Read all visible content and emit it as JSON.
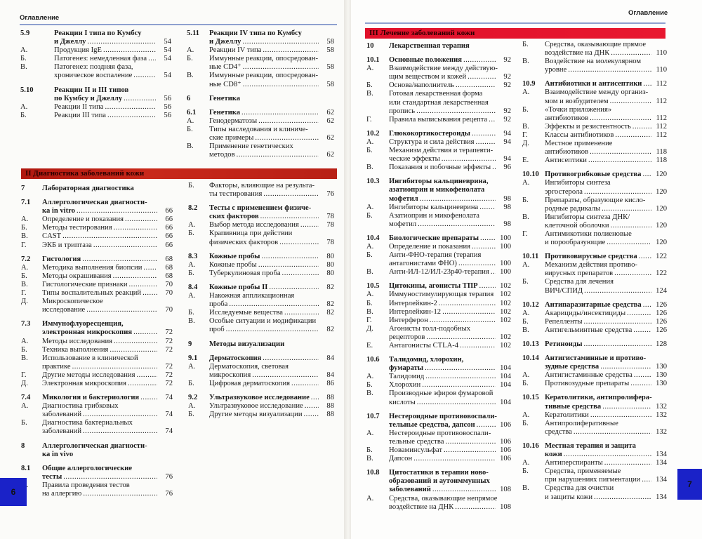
{
  "left_page": {
    "running_head": "Оглавление",
    "page_number": "6",
    "section_bar": "II   Диагностика заболеваний кожи",
    "top_col1": [
      {
        "n": "5.9",
        "b": true,
        "t": [
          "Реакции I типа по Кумбсу",
          "и Джеллу"
        ],
        "p": "54"
      },
      {
        "n": "А.",
        "t": [
          "Продукция IgE"
        ],
        "p": "54"
      },
      {
        "n": "Б.",
        "t": [
          "Патогенез: немедленная фаза"
        ],
        "p": "54"
      },
      {
        "n": "В.",
        "t": [
          "Патогенез: поздняя фаза,",
          "хроническое воспаление"
        ],
        "p": "54"
      },
      {
        "n": "5.10",
        "b": true,
        "g": true,
        "t": [
          "Реакции II и III типов",
          "по Кумбсу и Джеллу"
        ],
        "p": "56"
      },
      {
        "n": "А.",
        "t": [
          "Реакции II типа"
        ],
        "p": "56"
      },
      {
        "n": "Б.",
        "t": [
          "Реакции III типа"
        ],
        "p": "56"
      }
    ],
    "top_col2": [
      {
        "n": "5.11",
        "b": true,
        "t": [
          "Реакции IV типа по Кумбсу",
          "и Джеллу"
        ],
        "p": "58"
      },
      {
        "n": "А.",
        "t": [
          "Реакции IV типа"
        ],
        "p": "58"
      },
      {
        "n": "Б.",
        "t": [
          "Иммунные реакции, опосредован-",
          "ные CD4⁺"
        ],
        "p": "58"
      },
      {
        "n": "В.",
        "t": [
          "Иммунные реакции, опосредован-",
          "ные CD8⁺"
        ],
        "p": "58"
      },
      {
        "n": "6",
        "b": true,
        "g": true,
        "t": [
          "Генетика"
        ],
        "p": ""
      },
      {
        "n": "6.1",
        "b": true,
        "g": true,
        "t": [
          "Генетика"
        ],
        "p": "62"
      },
      {
        "n": "А.",
        "t": [
          "Генодерматозы"
        ],
        "p": "62"
      },
      {
        "n": "Б.",
        "t": [
          "Типы наследования и клиниче-",
          "ские примеры"
        ],
        "p": "62"
      },
      {
        "n": "В.",
        "t": [
          "Применение генетических",
          "методов"
        ],
        "p": "62"
      }
    ],
    "col1": [
      {
        "n": "7",
        "b": true,
        "t": [
          "Лабораторная диагностика"
        ],
        "p": ""
      },
      {
        "n": "7.1",
        "b": true,
        "g": true,
        "t": [
          "Аллергологическая диагности-",
          "ка in vitro"
        ],
        "p": "66"
      },
      {
        "n": "А.",
        "t": [
          "Определение и показания"
        ],
        "p": "66"
      },
      {
        "n": "Б.",
        "t": [
          "Методы тестирования"
        ],
        "p": "66"
      },
      {
        "n": "В.",
        "t": [
          "CAST"
        ],
        "p": "66"
      },
      {
        "n": "Г.",
        "t": [
          "ЭКБ и триптаза"
        ],
        "p": "66"
      },
      {
        "n": "7.2",
        "b": true,
        "g": true,
        "t": [
          "Гистология"
        ],
        "p": "68"
      },
      {
        "n": "А.",
        "t": [
          "Методика выполнения биопсии"
        ],
        "p": "68"
      },
      {
        "n": "Б.",
        "t": [
          "Методы окрашивания"
        ],
        "p": "68"
      },
      {
        "n": "В.",
        "t": [
          "Гистологические признаки"
        ],
        "p": "70"
      },
      {
        "n": "Г.",
        "t": [
          "Типы воспалительных реакций"
        ],
        "p": "70"
      },
      {
        "n": "Д.",
        "t": [
          "Микроскопическое",
          "исследование"
        ],
        "p": "70"
      },
      {
        "n": "7.3",
        "b": true,
        "g": true,
        "t": [
          "Иммунофлуоресценция,",
          "электронная микроскопия"
        ],
        "p": "72"
      },
      {
        "n": "А.",
        "t": [
          "Методы исследования"
        ],
        "p": "72"
      },
      {
        "n": "Б.",
        "t": [
          "Техника выполнения"
        ],
        "p": "72"
      },
      {
        "n": "В.",
        "t": [
          "Использование в клинической",
          "практике"
        ],
        "p": "72"
      },
      {
        "n": "Г.",
        "t": [
          "Другие методы исследования"
        ],
        "p": "72"
      },
      {
        "n": "Д.",
        "t": [
          "Электронная микроскопия"
        ],
        "p": "72"
      },
      {
        "n": "7.4",
        "b": true,
        "g": true,
        "t": [
          "Микология и бактериология"
        ],
        "p": "74"
      },
      {
        "n": "А.",
        "t": [
          "Диагностика грибковых",
          "заболеваний"
        ],
        "p": "74"
      },
      {
        "n": "Б.",
        "t": [
          "Диагностика бактериальных",
          "заболеваний"
        ],
        "p": "74"
      },
      {
        "n": "8",
        "b": true,
        "g": true,
        "t": [
          "Аллергологическая диагности-",
          "ка in vivo"
        ],
        "p": ""
      },
      {
        "n": "8.1",
        "b": true,
        "g": true,
        "t": [
          "Общие аллергологические",
          "тесты"
        ],
        "p": "76"
      },
      {
        "n": "А.",
        "t": [
          "Правила проведения тестов",
          "на аллергию"
        ],
        "p": "76"
      }
    ],
    "col2": [
      {
        "n": "Б.",
        "t": [
          "Факторы, влияющие на результа-",
          "ты тестирования"
        ],
        "p": "76"
      },
      {
        "n": "8.2",
        "b": true,
        "g": true,
        "t": [
          "Тесты с применением физиче-",
          "ских факторов"
        ],
        "p": "78"
      },
      {
        "n": "А.",
        "t": [
          "Выбор метода исследования"
        ],
        "p": "78"
      },
      {
        "n": "Б.",
        "t": [
          "Крапивница при действии",
          "физических факторов"
        ],
        "p": "78"
      },
      {
        "n": "8.3",
        "b": true,
        "g": true,
        "t": [
          "Кожные пробы"
        ],
        "p": "80"
      },
      {
        "n": "А.",
        "t": [
          "Кожные пробы"
        ],
        "p": "80"
      },
      {
        "n": "Б.",
        "t": [
          "Туберкулиновая проба"
        ],
        "p": "80"
      },
      {
        "n": "8.4",
        "b": true,
        "g": true,
        "t": [
          "Кожные пробы II"
        ],
        "p": "82"
      },
      {
        "n": "А.",
        "t": [
          "Накожная аппликационная",
          "проба"
        ],
        "p": "82"
      },
      {
        "n": "Б.",
        "t": [
          "Исследуемые вещества"
        ],
        "p": "82"
      },
      {
        "n": "В.",
        "t": [
          "Особые ситуации и модификации",
          "проб"
        ],
        "p": "82"
      },
      {
        "n": "9",
        "b": true,
        "g": true,
        "t": [
          "Методы визуализации"
        ],
        "p": ""
      },
      {
        "n": "9.1",
        "b": true,
        "g": true,
        "t": [
          "Дерматоскопия"
        ],
        "p": "84"
      },
      {
        "n": "А.",
        "t": [
          "Дерматоскопия, световая",
          "микроскопия"
        ],
        "p": "84"
      },
      {
        "n": "Б.",
        "t": [
          "Цифровая дерматоскопия"
        ],
        "p": "86"
      },
      {
        "n": "9.2",
        "b": true,
        "g": true,
        "t": [
          "Ультразвуковое исследование"
        ],
        "p": "88"
      },
      {
        "n": "А.",
        "t": [
          "Ультразвуковое исследование"
        ],
        "p": "88"
      },
      {
        "n": "Б.",
        "t": [
          "Другие методы визуализации"
        ],
        "p": "88"
      }
    ]
  },
  "right_page": {
    "running_head": "Оглавление",
    "page_number": "7",
    "section_bar": "III  Лечение заболеваний кожи",
    "col1": [
      {
        "n": "10",
        "b": true,
        "t": [
          "Лекарственная терапия"
        ],
        "p": ""
      },
      {
        "n": "10.1",
        "b": true,
        "g": true,
        "t": [
          "Основные положения"
        ],
        "p": "92"
      },
      {
        "n": "А.",
        "t": [
          "Взаимодействие между действую-",
          "щим веществом и кожей"
        ],
        "p": "92"
      },
      {
        "n": "Б.",
        "t": [
          "Основа/наполнитель"
        ],
        "p": "92"
      },
      {
        "n": "В.",
        "t": [
          "Готовая лекарственная форма",
          "или стандартная лекарственная",
          "пропись"
        ],
        "p": "92"
      },
      {
        "n": "Г.",
        "t": [
          "Правила выписывания рецепта"
        ],
        "p": "92"
      },
      {
        "n": "10.2",
        "b": true,
        "g": true,
        "t": [
          "Глюкокортикостероиды"
        ],
        "p": "94"
      },
      {
        "n": "А.",
        "t": [
          "Структура и сила действия"
        ],
        "p": "94"
      },
      {
        "n": "Б.",
        "t": [
          "Механизм действия и терапевти-",
          "ческие эффекты"
        ],
        "p": "94"
      },
      {
        "n": "В.",
        "t": [
          "Показания и побочные эффекты"
        ],
        "p": "96"
      },
      {
        "n": "10.3",
        "b": true,
        "g": true,
        "t": [
          "Ингибиторы кальциневрина,",
          "азатиоприн и микофенолата",
          "мофетил"
        ],
        "p": "98"
      },
      {
        "n": "А.",
        "t": [
          "Ингибиторы кальциневрина"
        ],
        "p": "98"
      },
      {
        "n": "Б.",
        "t": [
          "Азатиоприн и микофенолата",
          "мофетил"
        ],
        "p": "98"
      },
      {
        "n": "10.4",
        "b": true,
        "g": true,
        "t": [
          "Биологические препараты"
        ],
        "p": "100"
      },
      {
        "n": "А.",
        "t": [
          "Определение и показания"
        ],
        "p": "100"
      },
      {
        "n": "Б.",
        "t": [
          "Анти-ФНО-терапия (терапия",
          "антагонистами ФНО)"
        ],
        "p": "100"
      },
      {
        "n": "В.",
        "t": [
          "Анти-ИЛ-12/ИЛ-23p40-терапия"
        ],
        "p": "100"
      },
      {
        "n": "10.5",
        "b": true,
        "g": true,
        "t": [
          "Цитокины, агонисты ТПР"
        ],
        "p": "102"
      },
      {
        "n": "А.",
        "t": [
          "Иммуностимулирующая терапия"
        ],
        "p": "102"
      },
      {
        "n": "Б.",
        "t": [
          "Интерлейкин-2"
        ],
        "p": "102"
      },
      {
        "n": "В.",
        "t": [
          "Интерлейкин-12"
        ],
        "p": "102"
      },
      {
        "n": "Г.",
        "t": [
          "Интерферон"
        ],
        "p": "102"
      },
      {
        "n": "Д.",
        "t": [
          "Агонисты толл-подобных",
          "рецепторов"
        ],
        "p": "102"
      },
      {
        "n": "Е.",
        "t": [
          "Антагонисты CTLA-4"
        ],
        "p": "102"
      },
      {
        "n": "10.6",
        "b": true,
        "g": true,
        "t": [
          "Талидомид, хлорохин,",
          "фумараты"
        ],
        "p": "104"
      },
      {
        "n": "А.",
        "t": [
          "Талидомид"
        ],
        "p": "104"
      },
      {
        "n": "Б.",
        "t": [
          "Хлорохин"
        ],
        "p": "104"
      },
      {
        "n": "В.",
        "t": [
          "Производные эфиров фумаровой",
          "кислоты"
        ],
        "p": "104"
      },
      {
        "n": "10.7",
        "b": true,
        "g": true,
        "t": [
          "Нестероидные противовоспали-",
          "тельные средства, дапсон"
        ],
        "p": "106"
      },
      {
        "n": "А.",
        "t": [
          "Нестероидные противовоспали-",
          "тельные средства"
        ],
        "p": "106"
      },
      {
        "n": "Б.",
        "t": [
          "Новаминсульфат"
        ],
        "p": "106"
      },
      {
        "n": "В.",
        "t": [
          "Дапсон"
        ],
        "p": "106"
      },
      {
        "n": "10.8",
        "b": true,
        "g": true,
        "t": [
          "Цитостатики в терапии ново-",
          "образований и аутоиммунных",
          "заболеваний"
        ],
        "p": "108"
      },
      {
        "n": "А.",
        "t": [
          "Средства, оказывающие непрямое",
          "воздействие на ДНК"
        ],
        "p": "108"
      }
    ],
    "col2": [
      {
        "n": "Б.",
        "t": [
          "Средства, оказывающие прямое",
          "воздействие на ДНК"
        ],
        "p": "110"
      },
      {
        "n": "В.",
        "t": [
          "Воздействие на молекулярном",
          "уровне"
        ],
        "p": "110"
      },
      {
        "n": "10.9",
        "b": true,
        "g": true,
        "t": [
          "Антибиотики и антисептики"
        ],
        "p": "112"
      },
      {
        "n": "А.",
        "t": [
          "Взаимодействие между организ-",
          "мом и возбудителем"
        ],
        "p": "112"
      },
      {
        "n": "Б.",
        "t": [
          "«Точки приложения»",
          "антибиотиков"
        ],
        "p": "112"
      },
      {
        "n": "В.",
        "t": [
          "Эффекты и резистентность"
        ],
        "p": "112"
      },
      {
        "n": "Г.",
        "t": [
          "Классы антибиотиков"
        ],
        "p": "112"
      },
      {
        "n": "Д.",
        "t": [
          "Местное применение",
          "антибиотиков"
        ],
        "p": "118"
      },
      {
        "n": "Е.",
        "t": [
          "Антисептики"
        ],
        "p": "118"
      },
      {
        "n": "10.10",
        "b": true,
        "g": true,
        "t": [
          "Противогрибковые средства"
        ],
        "p": "120"
      },
      {
        "n": "А.",
        "t": [
          "Ингибиторы синтеза",
          "эргостерола"
        ],
        "p": "120"
      },
      {
        "n": "Б.",
        "t": [
          "Препараты, образующие кисло-",
          "родные радикалы"
        ],
        "p": "120"
      },
      {
        "n": "В.",
        "t": [
          "Ингибиторы синтеза ДНК/",
          "клеточной оболочки"
        ],
        "p": "120"
      },
      {
        "n": "Г.",
        "t": [
          "Антимикотики полиеновые",
          "и порообразующие"
        ],
        "p": "120"
      },
      {
        "n": "10.11",
        "b": true,
        "g": true,
        "t": [
          "Противовирусные средства"
        ],
        "p": "122"
      },
      {
        "n": "А.",
        "t": [
          "Механизм действия противо-",
          "вирусных препаратов"
        ],
        "p": "122"
      },
      {
        "n": "Б.",
        "t": [
          "Средства для лечения",
          "ВИЧ/СПИД"
        ],
        "p": "124"
      },
      {
        "n": "10.12",
        "b": true,
        "g": true,
        "t": [
          "Антипаразитарные средства"
        ],
        "p": "126"
      },
      {
        "n": "А.",
        "t": [
          "Акарициды/инсектициды"
        ],
        "p": "126"
      },
      {
        "n": "Б.",
        "t": [
          "Репелленты"
        ],
        "p": "126"
      },
      {
        "n": "В.",
        "t": [
          "Антигельминтные средства"
        ],
        "p": "126"
      },
      {
        "n": "10.13",
        "b": true,
        "g": true,
        "t": [
          "Ретиноиды"
        ],
        "p": "128"
      },
      {
        "n": "10.14",
        "b": true,
        "g": true,
        "t": [
          "Антигистаминные и противо-",
          "зудные средства"
        ],
        "p": "130"
      },
      {
        "n": "А.",
        "t": [
          "Антигистаминные средства"
        ],
        "p": "130"
      },
      {
        "n": "Б.",
        "t": [
          "Противозудные препараты"
        ],
        "p": "130"
      },
      {
        "n": "10.15",
        "b": true,
        "g": true,
        "t": [
          "Кератолитики, антипролифера-",
          "тивные средства"
        ],
        "p": "132"
      },
      {
        "n": "А.",
        "t": [
          "Кератолитики"
        ],
        "p": "132"
      },
      {
        "n": "Б.",
        "t": [
          "Антипролиферативные",
          "средства"
        ],
        "p": "132"
      },
      {
        "n": "10.16",
        "b": true,
        "g": true,
        "t": [
          "Местная терапия и защита",
          "кожи"
        ],
        "p": "134"
      },
      {
        "n": "А.",
        "t": [
          "Антиперспиранты"
        ],
        "p": "134"
      },
      {
        "n": "Б.",
        "t": [
          "Средства, применяемые",
          "при нарушениях пигментации"
        ],
        "p": "134"
      },
      {
        "n": "В.",
        "t": [
          "Средства для очистки",
          "и защиты кожи"
        ],
        "p": "134"
      }
    ]
  },
  "colors": {
    "section_ii_bar": "#b81c14",
    "section_iii_bar": "#e4142c",
    "page_tab": "#1a22c8",
    "rule": "#8ea0cf"
  }
}
